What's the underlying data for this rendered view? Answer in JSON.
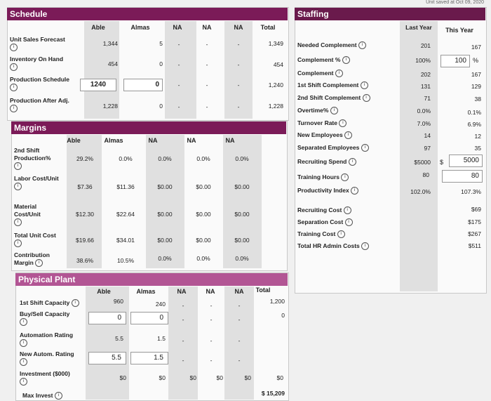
{
  "schedule": {
    "title": "Schedule",
    "cols": [
      "Able",
      "Almas",
      "NA",
      "NA",
      "NA",
      "Total"
    ],
    "rows": [
      {
        "label": "Unit Sales Forecast",
        "values": [
          "1,344",
          "5",
          "-",
          "-",
          "-",
          "1,349"
        ]
      },
      {
        "label": "Inventory On Hand",
        "values": [
          "454",
          "0",
          "-",
          "-",
          "-",
          "454"
        ]
      },
      {
        "label": "Production Schedule",
        "inputs": [
          "1240",
          "0"
        ],
        "values": [
          "-",
          "-",
          "-",
          "1,240"
        ]
      },
      {
        "label": "Production After Adj.",
        "values": [
          "1,228",
          "0",
          "-",
          "-",
          "-",
          "1,228"
        ]
      }
    ]
  },
  "margins": {
    "title": "Margins",
    "cols": [
      "Able",
      "Almas",
      "NA",
      "NA",
      "NA"
    ],
    "rows": [
      {
        "label": "2nd Shift Production%",
        "values": [
          "29.2%",
          "0.0%",
          "0.0%",
          "0.0%",
          "0.0%"
        ]
      },
      {
        "label": "Labor Cost/Unit",
        "values": [
          "$7.36",
          "$11.36",
          "$0.00",
          "$0.00",
          "$0.00"
        ]
      },
      {
        "label": "Material Cost/Unit",
        "values": [
          "$12.30",
          "$22.64",
          "$0.00",
          "$0.00",
          "$0.00"
        ]
      },
      {
        "label": "Total Unit Cost",
        "values": [
          "$19.66",
          "$34.01",
          "$0.00",
          "$0.00",
          "$0.00"
        ]
      },
      {
        "label": "Contribution Margin",
        "values": [
          "38.6%",
          "10.5%",
          "0.0%",
          "0.0%",
          "0.0%"
        ]
      }
    ]
  },
  "plant": {
    "title": "Physical Plant",
    "cols": [
      "Able",
      "Almas",
      "NA",
      "NA",
      "NA",
      "Total"
    ],
    "rows": [
      {
        "label": "1st Shift Capacity",
        "values": [
          "960",
          "240",
          "-",
          "-",
          "-",
          "1,200"
        ]
      },
      {
        "label": "Buy/Sell Capacity",
        "inputs": [
          "0",
          "0"
        ],
        "values": [
          "-",
          "-",
          "-",
          "0"
        ]
      },
      {
        "label": "Automation Rating",
        "values": [
          "5.5",
          "1.5",
          "-",
          "-",
          "-",
          ""
        ]
      },
      {
        "label": "New Autom. Rating",
        "inputs": [
          "5.5",
          "1.5"
        ],
        "values": [
          "-",
          "-",
          "-",
          ""
        ]
      },
      {
        "label": "Investment ($000)",
        "values": [
          "$0",
          "$0",
          "$0",
          "$0",
          "$0",
          "$0"
        ]
      },
      {
        "label": "Max Invest",
        "values": [
          "",
          "",
          "",
          "",
          "",
          "$ 15,209"
        ]
      }
    ]
  },
  "staffing": {
    "title": "Staffing",
    "top_text": "Unit saved at Oct 09, 2020",
    "col_last": "Last Year",
    "col_this": "This Year",
    "rows": [
      {
        "label": "Needed Complement",
        "last": "201",
        "this": "167"
      },
      {
        "label": "Complement %",
        "last": "100%",
        "input": "100",
        "unit": "%"
      },
      {
        "label": "Complement",
        "last": "202",
        "this": "167"
      },
      {
        "label": "1st Shift Complement",
        "last": "131",
        "this": "129"
      },
      {
        "label": "2nd Shift Complement",
        "last": "71",
        "this": "38"
      },
      {
        "label": "Overtime%",
        "last": "0.0%",
        "this": "0.1%"
      },
      {
        "label": "Turnover Rate",
        "last": "7.0%",
        "this": "6.9%"
      },
      {
        "label": "New Employees",
        "last": "14",
        "this": "12"
      },
      {
        "label": "Separated Employees",
        "last": "97",
        "this": "35"
      },
      {
        "label": "Recruiting Spend",
        "last": "$5000",
        "currency": "$",
        "input": "5000"
      },
      {
        "label": "Training Hours",
        "last": "80",
        "input": "80"
      },
      {
        "label": "Productivity Index",
        "last": "102.0%",
        "this": "107.3%"
      }
    ],
    "costs": [
      {
        "label": "Recruiting Cost",
        "value": "$69"
      },
      {
        "label": "Separation Cost",
        "value": "$175"
      },
      {
        "label": "Training Cost",
        "value": "$267"
      },
      {
        "label": "Total HR Admin Costs",
        "value": "$511"
      }
    ]
  }
}
